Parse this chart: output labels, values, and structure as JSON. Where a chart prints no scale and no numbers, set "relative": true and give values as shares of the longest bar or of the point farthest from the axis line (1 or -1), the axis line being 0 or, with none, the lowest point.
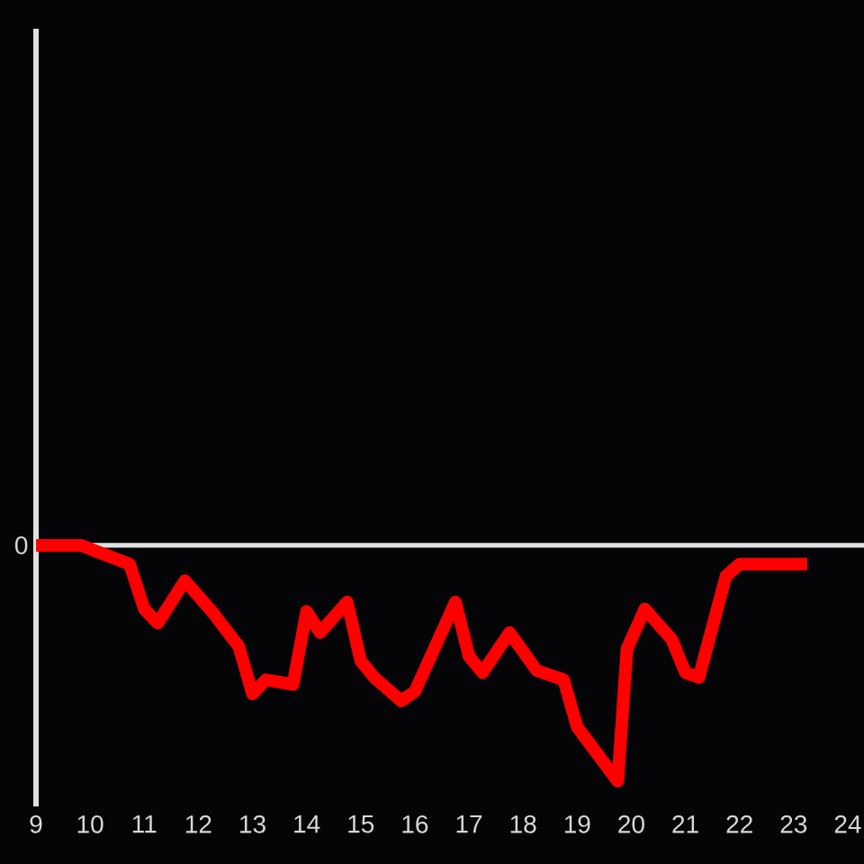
{
  "chart_data": {
    "type": "line",
    "relative": true,
    "x": [
      9,
      9.83,
      10.73,
      11,
      11.25,
      11.75,
      12.25,
      12.75,
      13,
      13.25,
      13.75,
      14,
      14.25,
      14.75,
      15,
      15.25,
      15.75,
      16,
      16.75,
      17,
      17.25,
      17.75,
      18.25,
      18.75,
      19,
      19.75,
      19.92,
      20.25,
      20.75,
      21,
      21.25,
      21.75,
      22,
      23.25
    ],
    "series": [
      {
        "color": "#ff0000",
        "values": [
          0,
          0,
          -0.08,
          -0.27,
          -0.33,
          -0.15,
          -0.28,
          -0.43,
          -0.63,
          -0.57,
          -0.59,
          -0.28,
          -0.37,
          -0.24,
          -0.49,
          -0.56,
          -0.66,
          -0.62,
          -0.24,
          -0.47,
          -0.54,
          -0.37,
          -0.53,
          -0.57,
          -0.77,
          -1,
          -0.44,
          -0.27,
          -0.4,
          -0.54,
          -0.56,
          -0.13,
          -0.08,
          -0.08
        ]
      }
    ],
    "xlim": [
      9,
      24.3
    ],
    "xticks": [
      9,
      10,
      11,
      12,
      13,
      14,
      15,
      16,
      17,
      18,
      19,
      20,
      21,
      22,
      23,
      24
    ],
    "ref_lines": [
      {
        "axis": "y",
        "value": 0,
        "label": "0",
        "color": "#e0e0e0"
      }
    ],
    "line_style": "solid"
  }
}
